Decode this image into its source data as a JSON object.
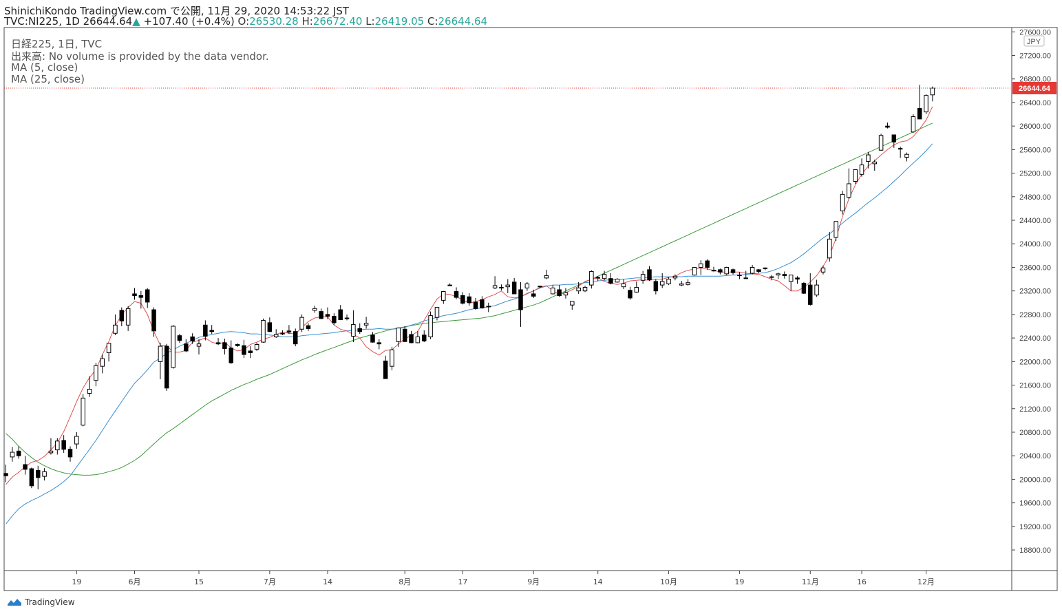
{
  "header": {
    "publisher_line": "ShinichiKondo TradingView.com で公開, 11月 29, 2020 14:53:22 JST",
    "symbol": "TVC:NI225, 1D",
    "last": "26644.64",
    "change": "+107.40 (+0.4%)",
    "o_label": "O:",
    "o": "26530.28",
    "h_label": "H:",
    "h": "26672.40",
    "l_label": "L:",
    "l": "26419.05",
    "c_label": "C:",
    "c": "26644.64"
  },
  "legend": {
    "title": "日経225, 1日, TVC",
    "volume": "出来高: No volume is provided by the data vendor.",
    "ma5": "MA (5, close)",
    "ma25": "MA (25, close)"
  },
  "currency_badge": "JPY",
  "last_price_label": "26644.64",
  "footer": {
    "brand": "TradingView"
  },
  "colors": {
    "up_text": "#26a69a",
    "ma5": "#e05050",
    "ma25": "#3a8fd0",
    "ma75": "#3c9a3c",
    "price_tag": "#e53935"
  },
  "chart_data": {
    "type": "candlestick",
    "y_ticks": [
      "27600.00",
      "27200.00",
      "26800.00",
      "26400.00",
      "26000.00",
      "25600.00",
      "25200.00",
      "24800.00",
      "24400.00",
      "24000.00",
      "23600.00",
      "23200.00",
      "22800.00",
      "22400.00",
      "22000.00",
      "21600.00",
      "21200.00",
      "20800.00",
      "20400.00",
      "20000.00",
      "19600.00",
      "19200.00",
      "18800.00"
    ],
    "y_range": [
      18450,
      27650
    ],
    "x_ticks": [
      {
        "label": "19",
        "i": 11
      },
      {
        "label": "6月",
        "i": 20
      },
      {
        "label": "15",
        "i": 30
      },
      {
        "label": "7月",
        "i": 41
      },
      {
        "label": "14",
        "i": 50
      },
      {
        "label": "8月",
        "i": 62
      },
      {
        "label": "17",
        "i": 71
      },
      {
        "label": "9月",
        "i": 82
      },
      {
        "label": "14",
        "i": 92
      },
      {
        "label": "10月",
        "i": 103
      },
      {
        "label": "19",
        "i": 114
      },
      {
        "label": "11月",
        "i": 125
      },
      {
        "label": "16",
        "i": 133
      },
      {
        "label": "12月",
        "i": 143
      }
    ],
    "candles": [
      [
        20100,
        20250,
        19950,
        20060
      ],
      [
        20380,
        20550,
        20300,
        20460
      ],
      [
        20480,
        20560,
        20350,
        20400
      ],
      [
        20250,
        20400,
        20080,
        20170
      ],
      [
        20180,
        20200,
        19850,
        19890
      ],
      [
        20150,
        20230,
        19830,
        20030
      ],
      [
        20050,
        20190,
        19980,
        20130
      ],
      [
        20450,
        20700,
        20420,
        20480
      ],
      [
        20500,
        20700,
        20420,
        20650
      ],
      [
        20660,
        20750,
        20450,
        20510
      ],
      [
        20510,
        20560,
        20300,
        20380
      ],
      [
        20600,
        20800,
        20520,
        20730
      ],
      [
        20920,
        21450,
        20900,
        21380
      ],
      [
        21460,
        21750,
        21400,
        21530
      ],
      [
        21680,
        21980,
        21580,
        21930
      ],
      [
        21920,
        22120,
        21800,
        22050
      ],
      [
        22150,
        22300,
        22000,
        22310
      ],
      [
        22480,
        22800,
        22450,
        22620
      ],
      [
        22870,
        22920,
        22600,
        22690
      ],
      [
        22620,
        22940,
        22520,
        22900
      ],
      [
        23150,
        23250,
        23050,
        23120
      ],
      [
        23120,
        23200,
        22900,
        23090
      ],
      [
        23220,
        23250,
        22910,
        23010
      ],
      [
        22880,
        22920,
        22420,
        22520
      ],
      [
        22000,
        22320,
        21700,
        22260
      ],
      [
        22260,
        22300,
        21500,
        21550
      ],
      [
        21900,
        22620,
        21880,
        22600
      ],
      [
        22440,
        22470,
        22320,
        22360
      ],
      [
        22300,
        22380,
        22160,
        22180
      ],
      [
        22420,
        22480,
        22300,
        22350
      ],
      [
        22260,
        22380,
        22120,
        22300
      ],
      [
        22620,
        22700,
        22360,
        22430
      ],
      [
        22530,
        22620,
        22470,
        22510
      ],
      [
        22320,
        22400,
        22280,
        22300
      ],
      [
        22320,
        22390,
        22120,
        22220
      ],
      [
        22230,
        22360,
        21960,
        21980
      ],
      [
        22290,
        22310,
        22250,
        22270
      ],
      [
        22270,
        22370,
        22060,
        22120
      ],
      [
        22180,
        22260,
        22060,
        22150
      ],
      [
        22210,
        22320,
        22180,
        22290
      ],
      [
        22330,
        22730,
        22320,
        22700
      ],
      [
        22660,
        22750,
        22500,
        22510
      ],
      [
        22420,
        22550,
        22400,
        22460
      ],
      [
        22480,
        22530,
        22450,
        22470
      ],
      [
        22520,
        22620,
        22470,
        22500
      ],
      [
        22510,
        22560,
        22260,
        22300
      ],
      [
        22550,
        22800,
        22500,
        22750
      ],
      [
        22610,
        22650,
        22520,
        22560
      ],
      [
        22870,
        22950,
        22830,
        22900
      ],
      [
        22850,
        22900,
        22720,
        22730
      ],
      [
        22800,
        22920,
        22720,
        22770
      ],
      [
        22770,
        22820,
        22620,
        22660
      ],
      [
        22880,
        22960,
        22710,
        22710
      ],
      [
        22740,
        22800,
        22700,
        22730
      ],
      [
        22430,
        22870,
        22330,
        22630
      ],
      [
        22560,
        22650,
        22470,
        22510
      ],
      [
        22620,
        22760,
        22560,
        22650
      ],
      [
        22450,
        22500,
        22320,
        22330
      ],
      [
        22320,
        22380,
        22210,
        22300
      ],
      [
        22010,
        22100,
        21710,
        21710
      ],
      [
        21920,
        22250,
        21850,
        22200
      ],
      [
        22340,
        22580,
        22250,
        22570
      ],
      [
        22550,
        22600,
        22330,
        22340
      ],
      [
        22460,
        22520,
        22310,
        22320
      ],
      [
        22320,
        22520,
        22310,
        22420
      ],
      [
        22450,
        22530,
        22330,
        22350
      ],
      [
        22420,
        22850,
        22380,
        22780
      ],
      [
        22750,
        22920,
        22700,
        22920
      ],
      [
        23040,
        23200,
        22980,
        23190
      ],
      [
        23300,
        23330,
        23290,
        23300
      ],
      [
        23190,
        23260,
        23060,
        23090
      ],
      [
        23120,
        23180,
        22970,
        22990
      ],
      [
        23100,
        23160,
        22950,
        23000
      ],
      [
        23010,
        23080,
        22880,
        22900
      ],
      [
        23050,
        23110,
        22900,
        22910
      ],
      [
        22930,
        23000,
        22840,
        22940
      ],
      [
        23250,
        23450,
        23230,
        23290
      ],
      [
        23260,
        23310,
        23210,
        23260
      ],
      [
        23270,
        23400,
        23160,
        23300
      ],
      [
        23350,
        23420,
        23150,
        23150
      ],
      [
        23220,
        23350,
        22590,
        22880
      ],
      [
        23250,
        23350,
        23200,
        23320
      ],
      [
        23150,
        23220,
        23080,
        23110
      ],
      [
        23280,
        23290,
        23250,
        23270
      ],
      [
        23420,
        23560,
        23400,
        23460
      ],
      [
        23150,
        23300,
        23140,
        23250
      ],
      [
        23220,
        23300,
        23100,
        23120
      ],
      [
        23130,
        23250,
        23070,
        23170
      ],
      [
        22960,
        23010,
        22880,
        23020
      ],
      [
        23200,
        23350,
        23150,
        23250
      ],
      [
        23200,
        23290,
        23180,
        23260
      ],
      [
        23300,
        23550,
        23240,
        23530
      ],
      [
        23430,
        23450,
        23370,
        23420
      ],
      [
        23410,
        23540,
        23380,
        23480
      ],
      [
        23410,
        23500,
        23310,
        23330
      ],
      [
        23350,
        23420,
        23340,
        23400
      ],
      [
        23270,
        23400,
        23230,
        23320
      ],
      [
        23210,
        23270,
        23050,
        23080
      ],
      [
        23180,
        23360,
        23170,
        23260
      ],
      [
        23380,
        23540,
        23320,
        23480
      ],
      [
        23560,
        23620,
        23370,
        23390
      ],
      [
        23360,
        23400,
        23140,
        23200
      ],
      [
        23300,
        23500,
        23250,
        23360
      ],
      [
        23320,
        23430,
        23300,
        23400
      ],
      [
        23420,
        23480,
        23380,
        23450
      ],
      [
        23300,
        23370,
        23280,
        23320
      ],
      [
        23310,
        23400,
        23290,
        23340
      ],
      [
        23470,
        23600,
        23460,
        23600
      ],
      [
        23600,
        23720,
        23470,
        23660
      ],
      [
        23710,
        23740,
        23560,
        23600
      ],
      [
        23550,
        23610,
        23530,
        23540
      ],
      [
        23560,
        23580,
        23480,
        23520
      ],
      [
        23490,
        23610,
        23470,
        23600
      ],
      [
        23560,
        23580,
        23480,
        23510
      ],
      [
        23470,
        23520,
        23400,
        23460
      ],
      [
        23420,
        23540,
        23410,
        23420
      ],
      [
        23500,
        23640,
        23480,
        23600
      ],
      [
        23560,
        23570,
        23500,
        23530
      ],
      [
        23590,
        23600,
        23550,
        23580
      ],
      [
        23440,
        23470,
        23380,
        23430
      ],
      [
        23470,
        23510,
        23400,
        23490
      ],
      [
        23480,
        23530,
        23410,
        23460
      ],
      [
        23360,
        23470,
        23200,
        23470
      ],
      [
        23420,
        23450,
        23320,
        23400
      ],
      [
        23330,
        23350,
        23150,
        23160
      ],
      [
        23300,
        23500,
        22950,
        22970
      ],
      [
        23130,
        23390,
        23100,
        23300
      ],
      [
        23520,
        23630,
        23480,
        23590
      ],
      [
        23760,
        24200,
        23700,
        24080
      ],
      [
        24110,
        24380,
        24050,
        24380
      ],
      [
        24560,
        24900,
        24500,
        24840
      ],
      [
        24790,
        25280,
        24760,
        25020
      ],
      [
        25060,
        25230,
        25020,
        25260
      ],
      [
        25180,
        25450,
        25140,
        25340
      ],
      [
        25400,
        25560,
        25280,
        25510
      ],
      [
        25360,
        25430,
        25240,
        25390
      ],
      [
        25590,
        25870,
        25580,
        25840
      ],
      [
        26000,
        26060,
        25960,
        25980
      ],
      [
        25850,
        25850,
        25630,
        25730
      ],
      [
        25620,
        25650,
        25460,
        25610
      ],
      [
        25470,
        25550,
        25400,
        25520
      ],
      [
        25900,
        26200,
        25880,
        26160
      ],
      [
        26300,
        26700,
        26200,
        26120
      ],
      [
        26240,
        26540,
        26200,
        26520
      ],
      [
        26530,
        26672,
        26419,
        26644
      ]
    ],
    "ma5": [
      19910,
      20040,
      20120,
      20210,
      20290,
      20320,
      20390,
      20500,
      20620,
      20810,
      21060,
      21320,
      21550,
      21730,
      21860,
      22120,
      22340,
      22610,
      22790,
      22920,
      23020,
      22990,
      22800,
      22510,
      22280,
      22270,
      22160,
      22160,
      22190,
      22330,
      22360,
      22400,
      22330,
      22300,
      22330,
      22230,
      22180,
      22200,
      22290,
      22330,
      22380,
      22410,
      22460,
      22500,
      22480,
      22470,
      22580,
      22680,
      22740,
      22760,
      22760,
      22620,
      22550,
      22520,
      22460,
      22400,
      22250,
      22170,
      22110,
      22190,
      22200,
      22300,
      22390,
      22440,
      22510,
      22700,
      22890,
      23060,
      23150,
      23140,
      23100,
      23050,
      22990,
      23020,
      23050,
      23100,
      23140,
      23200,
      23100,
      23080,
      23100,
      23150,
      23200,
      23260,
      23290,
      23200,
      23140,
      23170,
      23220,
      23280,
      23360,
      23400,
      23420,
      23360,
      23330,
      23310,
      23330,
      23370,
      23380,
      23390,
      23380,
      23400,
      23400,
      23430,
      23450,
      23510,
      23550,
      23570,
      23590,
      23570,
      23550,
      23520,
      23520,
      23520,
      23520,
      23500,
      23490,
      23480,
      23440,
      23400,
      23370,
      23290,
      23200,
      23200,
      23260,
      23350,
      23460,
      23620,
      23800,
      24090,
      24460,
      24760,
      25000,
      25180,
      25320,
      25410,
      25510,
      25600,
      25680,
      25730,
      25750,
      25820,
      25950,
      26100,
      26330
    ],
    "ma25": [
      19240,
      19380,
      19500,
      19580,
      19640,
      19690,
      19750,
      19810,
      19880,
      19960,
      20060,
      20210,
      20360,
      20510,
      20660,
      20830,
      21000,
      21160,
      21320,
      21480,
      21630,
      21740,
      21860,
      21990,
      22060,
      22140,
      22200,
      22260,
      22310,
      22360,
      22410,
      22440,
      22460,
      22480,
      22500,
      22510,
      22500,
      22490,
      22470,
      22470,
      22460,
      22450,
      22440,
      22420,
      22420,
      22420,
      22440,
      22450,
      22460,
      22470,
      22480,
      22490,
      22510,
      22520,
      22530,
      22540,
      22550,
      22550,
      22560,
      22550,
      22550,
      22560,
      22580,
      22620,
      22650,
      22690,
      22720,
      22750,
      22780,
      22800,
      22820,
      22850,
      22880,
      22900,
      22910,
      22930,
      22950,
      22990,
      23030,
      23060,
      23100,
      23160,
      23200,
      23250,
      23280,
      23300,
      23300,
      23310,
      23310,
      23320,
      23340,
      23350,
      23370,
      23380,
      23390,
      23390,
      23400,
      23410,
      23420,
      23420,
      23430,
      23440,
      23440,
      23440,
      23440,
      23440,
      23450,
      23450,
      23450,
      23450,
      23450,
      23450,
      23460,
      23470,
      23470,
      23480,
      23490,
      23500,
      23510,
      23540,
      23580,
      23630,
      23680,
      23750,
      23830,
      23920,
      24010,
      24100,
      24170,
      24260,
      24350,
      24440,
      24520,
      24610,
      24700,
      24780,
      24870,
      24960,
      25060,
      25160,
      25270,
      25370,
      25470,
      25580,
      25700
    ],
    "ma75": [
      20780,
      20680,
      20560,
      20460,
      20370,
      20290,
      20230,
      20180,
      20140,
      20110,
      20090,
      20080,
      20070,
      20070,
      20080,
      20100,
      20130,
      20160,
      20200,
      20260,
      20320,
      20400,
      20500,
      20600,
      20700,
      20790,
      20860,
      20940,
      21020,
      21100,
      21180,
      21260,
      21330,
      21390,
      21450,
      21510,
      21560,
      21610,
      21650,
      21700,
      21740,
      21780,
      21830,
      21880,
      21930,
      21980,
      22030,
      22070,
      22120,
      22160,
      22200,
      22240,
      22280,
      22320,
      22360,
      22400,
      22430,
      22460,
      22490,
      22520,
      22550,
      22570,
      22590,
      22610,
      22630,
      22650,
      22660,
      22670,
      22680,
      22690,
      22700,
      22710,
      22720,
      22730,
      22740,
      22760,
      22780,
      22810,
      22840,
      22870,
      22900,
      22930,
      22960,
      23000,
      23050,
      23100,
      23150,
      23200,
      23250,
      23300,
      23350,
      23400,
      23450,
      23500,
      23550,
      23600,
      23650,
      23700,
      23750,
      23800,
      23850,
      23900,
      23950,
      24000,
      24050,
      24100,
      24150,
      24200,
      24250,
      24300,
      24350,
      24400,
      24450,
      24500,
      24550,
      24600,
      24650,
      24700,
      24750,
      24800,
      24850,
      24900,
      24950,
      25000,
      25050,
      25100,
      25150,
      25200,
      25250,
      25300,
      25350,
      25400,
      25450,
      25500,
      25550,
      25600,
      25650,
      25700,
      25750,
      25800,
      25850,
      25900,
      25950,
      26000,
      26050
    ]
  }
}
